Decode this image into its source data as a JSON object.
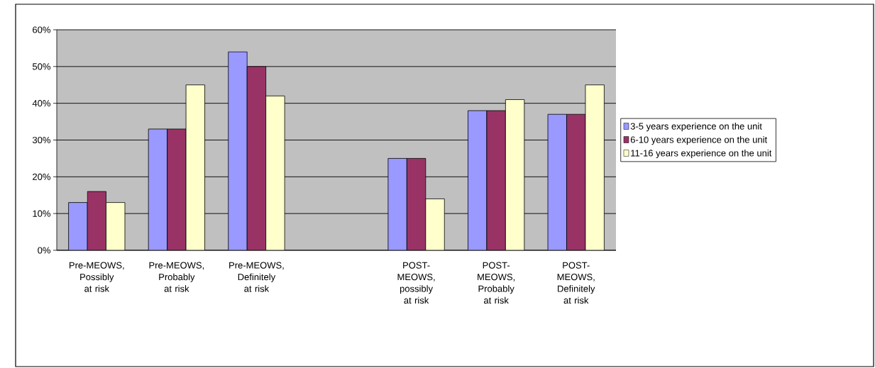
{
  "chart_data": {
    "type": "bar",
    "categories": [
      "Pre-MEOWS, Possibly at risk",
      "Pre-MEOWS, Probably at risk",
      "Pre-MEOWS, Definitely at risk",
      null,
      "POST-MEOWS, possibly at risk",
      "POST-MEOWS, Probably at risk",
      "POST-MEOWS, Definitely at risk"
    ],
    "series": [
      {
        "name": "3-5 years experience on the unit",
        "color": "#9999ff",
        "values": [
          13,
          33,
          54,
          null,
          25,
          38,
          37
        ]
      },
      {
        "name": "6-10 years experience on the unit",
        "color": "#993366",
        "values": [
          16,
          33,
          50,
          null,
          25,
          38,
          37
        ]
      },
      {
        "name": "11-16 years experience on the unit",
        "color": "#ffffcc",
        "values": [
          13,
          45,
          42,
          null,
          14,
          41,
          45
        ]
      }
    ],
    "ylim": [
      0,
      60
    ],
    "yticks": [
      {
        "value": 0,
        "label": "0%"
      },
      {
        "value": 10,
        "label": "10%"
      },
      {
        "value": 20,
        "label": "20%"
      },
      {
        "value": 30,
        "label": "30%"
      },
      {
        "value": 40,
        "label": "40%"
      },
      {
        "value": 50,
        "label": "50%"
      },
      {
        "value": 60,
        "label": "60%"
      }
    ],
    "grid": "y",
    "legend": "right"
  }
}
